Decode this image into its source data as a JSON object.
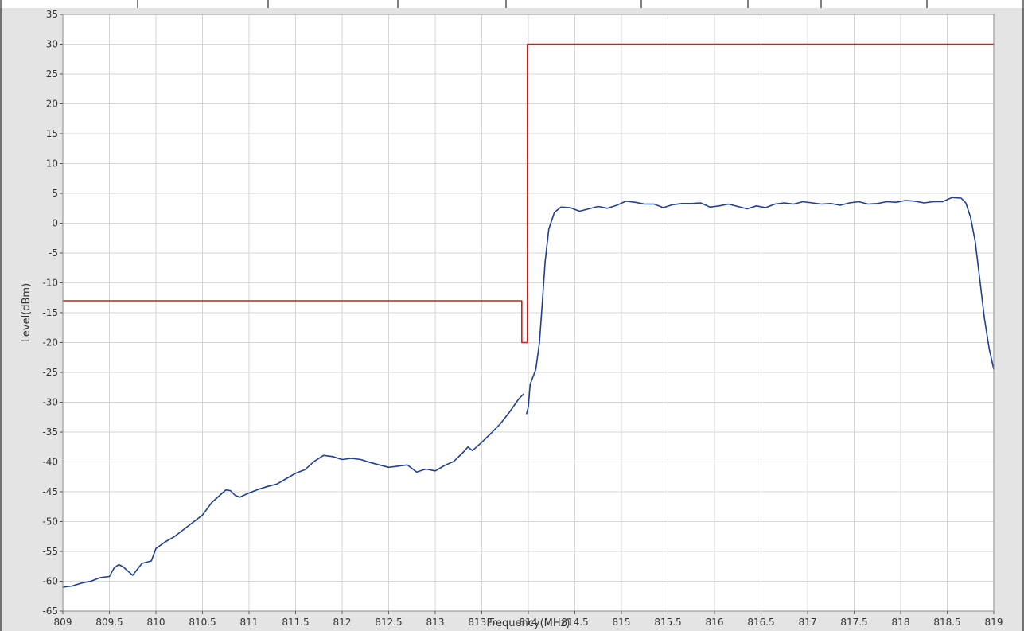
{
  "chart_data": {
    "type": "line",
    "title": "",
    "xlabel": "Frequency(MHz)",
    "ylabel": "Level(dBm)",
    "xlim": [
      809,
      819
    ],
    "ylim": [
      -65,
      35
    ],
    "grid": true,
    "legend": "none",
    "x_ticks": [
      809,
      809.5,
      810,
      810.5,
      811,
      811.5,
      812,
      812.5,
      813,
      813.5,
      814,
      814.5,
      815,
      815.5,
      816,
      816.5,
      817,
      817.5,
      818,
      818.5,
      819
    ],
    "y_ticks": [
      35,
      30,
      25,
      20,
      15,
      10,
      5,
      0,
      -5,
      -10,
      -15,
      -20,
      -25,
      -30,
      -35,
      -40,
      -45,
      -50,
      -55,
      -60,
      -65
    ],
    "series": [
      {
        "color": "#1f3f8f",
        "points": [
          [
            809.0,
            -61.0
          ],
          [
            809.1,
            -60.8
          ],
          [
            809.2,
            -60.3
          ],
          [
            809.3,
            -60.0
          ],
          [
            809.4,
            -59.4
          ],
          [
            809.5,
            -59.2
          ],
          [
            809.55,
            -57.8
          ],
          [
            809.6,
            -57.2
          ],
          [
            809.65,
            -57.6
          ],
          [
            809.7,
            -58.3
          ],
          [
            809.75,
            -59.0
          ],
          [
            809.8,
            -58.0
          ],
          [
            809.85,
            -57.0
          ],
          [
            809.95,
            -56.6
          ],
          [
            810.0,
            -54.5
          ],
          [
            810.1,
            -53.4
          ],
          [
            810.2,
            -52.5
          ],
          [
            810.3,
            -51.3
          ],
          [
            810.4,
            -50.1
          ],
          [
            810.5,
            -48.9
          ],
          [
            810.6,
            -46.8
          ],
          [
            810.7,
            -45.4
          ],
          [
            810.75,
            -44.7
          ],
          [
            810.8,
            -44.8
          ],
          [
            810.85,
            -45.6
          ],
          [
            810.9,
            -45.9
          ],
          [
            811.0,
            -45.2
          ],
          [
            811.1,
            -44.6
          ],
          [
            811.2,
            -44.1
          ],
          [
            811.3,
            -43.7
          ],
          [
            811.4,
            -42.8
          ],
          [
            811.5,
            -41.9
          ],
          [
            811.6,
            -41.3
          ],
          [
            811.7,
            -39.9
          ],
          [
            811.8,
            -38.9
          ],
          [
            811.9,
            -39.1
          ],
          [
            812.0,
            -39.6
          ],
          [
            812.1,
            -39.4
          ],
          [
            812.2,
            -39.6
          ],
          [
            812.3,
            -40.1
          ],
          [
            812.4,
            -40.5
          ],
          [
            812.5,
            -40.9
          ],
          [
            812.6,
            -40.7
          ],
          [
            812.7,
            -40.5
          ],
          [
            812.8,
            -41.7
          ],
          [
            812.9,
            -41.2
          ],
          [
            813.0,
            -41.5
          ],
          [
            813.1,
            -40.6
          ],
          [
            813.2,
            -39.9
          ],
          [
            813.3,
            -38.4
          ],
          [
            813.35,
            -37.5
          ],
          [
            813.4,
            -38.1
          ],
          [
            813.5,
            -36.7
          ],
          [
            813.6,
            -35.2
          ],
          [
            813.7,
            -33.6
          ],
          [
            813.8,
            -31.6
          ],
          [
            813.9,
            -29.4
          ],
          [
            813.95,
            -28.6
          ]
        ]
      },
      {
        "color": "#1f3f8f",
        "points": [
          [
            813.98,
            -32.0
          ],
          [
            814.0,
            -30.8
          ],
          [
            814.02,
            -27.0
          ],
          [
            814.08,
            -24.5
          ],
          [
            814.12,
            -20.0
          ],
          [
            814.15,
            -13.5
          ],
          [
            814.18,
            -6.5
          ],
          [
            814.22,
            -1.0
          ],
          [
            814.28,
            1.8
          ],
          [
            814.35,
            2.7
          ],
          [
            814.45,
            2.6
          ],
          [
            814.55,
            2.0
          ],
          [
            814.65,
            2.4
          ],
          [
            814.75,
            2.8
          ],
          [
            814.85,
            2.5
          ],
          [
            814.95,
            3.0
          ],
          [
            815.05,
            3.7
          ],
          [
            815.15,
            3.5
          ],
          [
            815.25,
            3.2
          ],
          [
            815.35,
            3.2
          ],
          [
            815.45,
            2.6
          ],
          [
            815.55,
            3.1
          ],
          [
            815.65,
            3.3
          ],
          [
            815.75,
            3.3
          ],
          [
            815.85,
            3.4
          ],
          [
            815.95,
            2.7
          ],
          [
            816.05,
            2.9
          ],
          [
            816.15,
            3.2
          ],
          [
            816.25,
            2.8
          ],
          [
            816.35,
            2.4
          ],
          [
            816.45,
            2.9
          ],
          [
            816.55,
            2.6
          ],
          [
            816.65,
            3.2
          ],
          [
            816.75,
            3.4
          ],
          [
            816.85,
            3.2
          ],
          [
            816.95,
            3.6
          ],
          [
            817.05,
            3.4
          ],
          [
            817.15,
            3.2
          ],
          [
            817.25,
            3.3
          ],
          [
            817.35,
            3.0
          ],
          [
            817.45,
            3.4
          ],
          [
            817.55,
            3.6
          ],
          [
            817.65,
            3.2
          ],
          [
            817.75,
            3.3
          ],
          [
            817.85,
            3.6
          ],
          [
            817.95,
            3.5
          ],
          [
            818.05,
            3.8
          ],
          [
            818.15,
            3.7
          ],
          [
            818.25,
            3.4
          ],
          [
            818.35,
            3.6
          ],
          [
            818.45,
            3.6
          ],
          [
            818.55,
            4.3
          ],
          [
            818.65,
            4.2
          ],
          [
            818.7,
            3.4
          ],
          [
            818.75,
            1.0
          ],
          [
            818.8,
            -3.0
          ],
          [
            818.85,
            -9.5
          ],
          [
            818.9,
            -16.0
          ],
          [
            818.95,
            -21.0
          ],
          [
            819.0,
            -24.5
          ]
        ]
      },
      {
        "color": "#cc1f1f",
        "points": [
          [
            809.0,
            -13.0
          ],
          [
            813.93,
            -13.0
          ],
          [
            813.93,
            -20.0
          ],
          [
            813.99,
            -20.0
          ],
          [
            813.99,
            30.0
          ],
          [
            819.0,
            30.0
          ]
        ]
      }
    ]
  }
}
